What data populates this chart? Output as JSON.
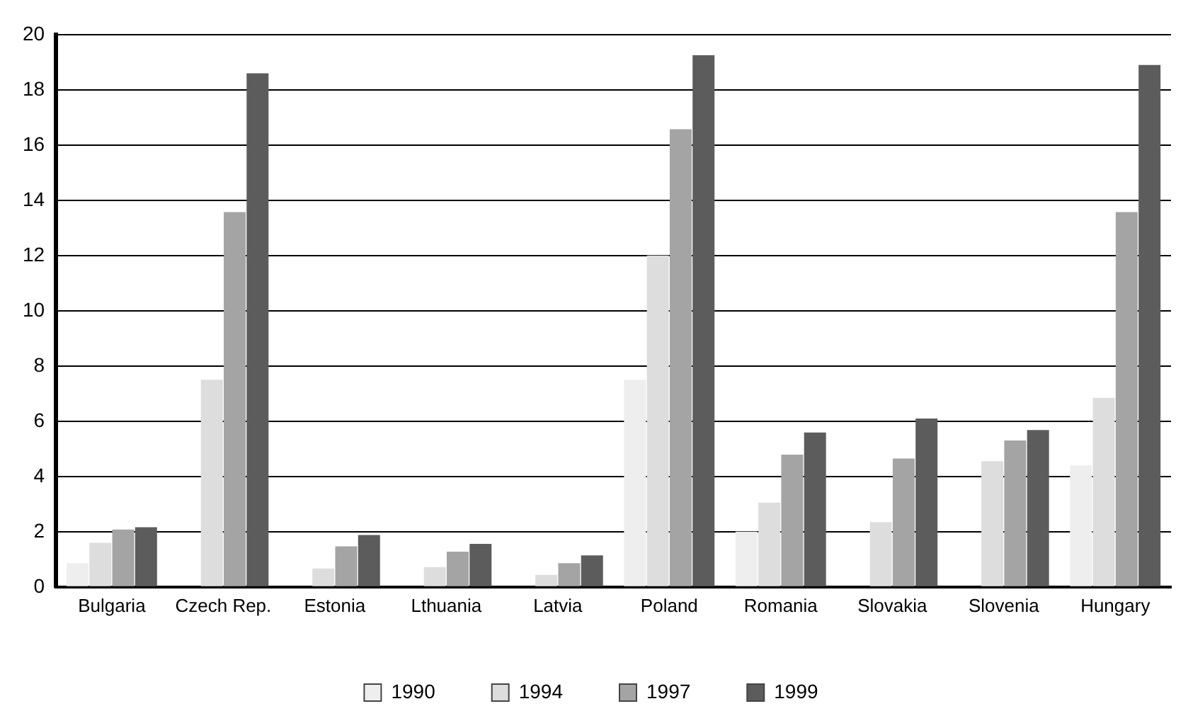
{
  "chart_data": {
    "type": "bar",
    "categories": [
      "Bulgaria",
      "Czech Rep.",
      "Estonia",
      "Lthuania",
      "Latvia",
      "Poland",
      "Romania",
      "Slovakia",
      "Slovenia",
      "Hungary"
    ],
    "series": [
      {
        "name": "1990",
        "color": "#eeeeee",
        "values": [
          0.86,
          null,
          null,
          null,
          null,
          7.5,
          2.0,
          null,
          null,
          4.4
        ]
      },
      {
        "name": "1994",
        "color": "#dddddd",
        "values": [
          1.6,
          7.5,
          0.67,
          0.72,
          0.44,
          12.0,
          3.05,
          2.35,
          4.55,
          6.85
        ]
      },
      {
        "name": "1997",
        "color": "#a4a4a4",
        "values": [
          2.08,
          13.57,
          1.47,
          1.28,
          0.86,
          16.57,
          4.79,
          4.65,
          5.3,
          13.57
        ]
      },
      {
        "name": "1999",
        "color": "#5c5c5c",
        "values": [
          2.16,
          18.6,
          1.88,
          1.56,
          1.14,
          19.25,
          5.59,
          6.1,
          5.68,
          18.9
        ]
      }
    ],
    "ylim": [
      0,
      20
    ],
    "yticks": [
      0,
      2,
      4,
      6,
      8,
      10,
      12,
      14,
      16,
      18,
      20
    ],
    "grid": "y",
    "legend": "bottom"
  }
}
